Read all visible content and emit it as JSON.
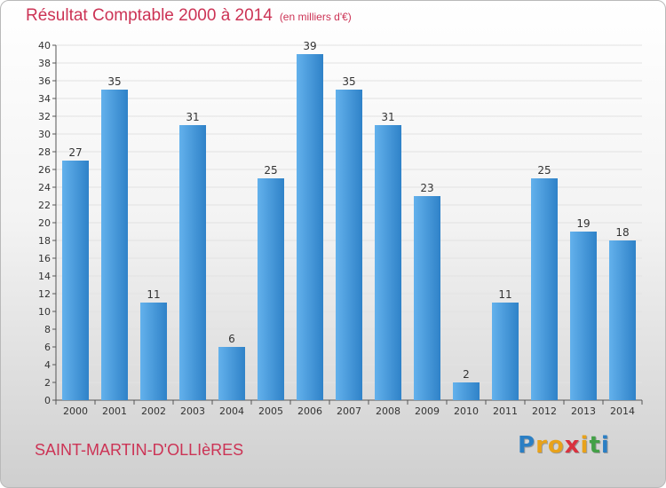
{
  "header": {
    "title": "Résultat Comptable 2000 à 2014",
    "unit": "(en milliers d'€)"
  },
  "footer": {
    "place": "SAINT-MARTIN-D'OLLIèRES",
    "logo_letters": [
      "P",
      "r",
      "o",
      "x",
      "i",
      "t",
      "i"
    ],
    "logo_colors": [
      "#2b7fc4",
      "#e8a21a",
      "#e8a21a",
      "#d9323e",
      "#e8a21a",
      "#43a047",
      "#2b7fc4"
    ]
  },
  "colors": {
    "bar_light": "#63b1ec",
    "bar_dark": "#2f82c8",
    "accent": "#cc3355",
    "grid": "#e2e2e2"
  },
  "chart_data": {
    "type": "bar",
    "categories": [
      "2000",
      "2001",
      "2002",
      "2003",
      "2004",
      "2005",
      "2006",
      "2007",
      "2008",
      "2009",
      "2010",
      "2011",
      "2012",
      "2013",
      "2014"
    ],
    "values": [
      27,
      35,
      11,
      31,
      6,
      25,
      39,
      35,
      31,
      23,
      2,
      11,
      25,
      19,
      18
    ],
    "title": "Résultat Comptable 2000 à 2014",
    "xlabel": "",
    "ylabel": "",
    "ylim": [
      0,
      40
    ],
    "yticks": [
      0,
      2,
      4,
      6,
      8,
      10,
      12,
      14,
      16,
      18,
      20,
      22,
      24,
      26,
      28,
      30,
      32,
      34,
      36,
      38,
      40
    ],
    "grid": true,
    "data_labels": true
  }
}
